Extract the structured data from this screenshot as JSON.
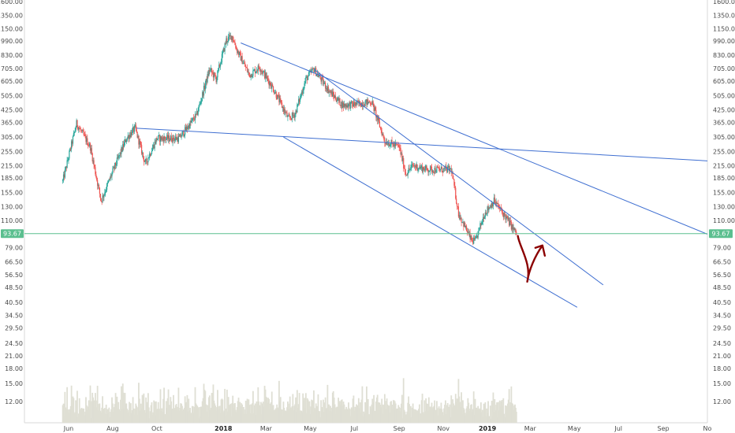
{
  "chart_data": {
    "type": "candlestick",
    "scale": "log",
    "ylim": [
      10.8,
      1600
    ],
    "y_ticks": [
      "1600.00",
      "1350.00",
      "1150.00",
      "990.00",
      "830.00",
      "705.00",
      "605.00",
      "505.00",
      "425.00",
      "365.00",
      "305.00",
      "255.00",
      "215.00",
      "185.00",
      "155.00",
      "130.00",
      "110.00",
      "79.00",
      "66.50",
      "56.50",
      "48.50",
      "40.50",
      "34.50",
      "29.50",
      "24.50",
      "21.00",
      "18.00",
      "15.00",
      "12.00"
    ],
    "x_ticks": [
      {
        "label": "Jun",
        "date": "2017-06-01"
      },
      {
        "label": "Aug",
        "date": "2017-08-01"
      },
      {
        "label": "Oct",
        "date": "2017-10-01"
      },
      {
        "label": "2018",
        "date": "2018-01-01",
        "bold": true
      },
      {
        "label": "Mar",
        "date": "2018-03-01"
      },
      {
        "label": "May",
        "date": "2018-05-01"
      },
      {
        "label": "Jul",
        "date": "2018-07-01"
      },
      {
        "label": "Sep",
        "date": "2018-09-01"
      },
      {
        "label": "Nov",
        "date": "2018-11-01"
      },
      {
        "label": "2019",
        "date": "2019-01-01",
        "bold": true
      },
      {
        "label": "Mar",
        "date": "2019-03-01"
      },
      {
        "label": "May",
        "date": "2019-05-01"
      },
      {
        "label": "Jul",
        "date": "2019-07-01"
      },
      {
        "label": "Sep",
        "date": "2019-09-01"
      },
      {
        "label": "No",
        "date": "2019-11-01"
      }
    ],
    "xlim": [
      "2017-04-01",
      "2019-11-01"
    ],
    "current_price": "93.67",
    "price_anchors": [
      {
        "date": "2017-05-24",
        "price": 178
      },
      {
        "date": "2017-06-12",
        "price": 360
      },
      {
        "date": "2017-07-01",
        "price": 270
      },
      {
        "date": "2017-07-16",
        "price": 140
      },
      {
        "date": "2017-08-01",
        "price": 200
      },
      {
        "date": "2017-08-20",
        "price": 300
      },
      {
        "date": "2017-09-01",
        "price": 340
      },
      {
        "date": "2017-09-15",
        "price": 220
      },
      {
        "date": "2017-10-01",
        "price": 300
      },
      {
        "date": "2017-11-01",
        "price": 300
      },
      {
        "date": "2017-11-25",
        "price": 400
      },
      {
        "date": "2017-12-13",
        "price": 700
      },
      {
        "date": "2017-12-22",
        "price": 620
      },
      {
        "date": "2018-01-05",
        "price": 1000
      },
      {
        "date": "2018-01-13",
        "price": 1050
      },
      {
        "date": "2018-01-20",
        "price": 880
      },
      {
        "date": "2018-02-06",
        "price": 650
      },
      {
        "date": "2018-02-20",
        "price": 720
      },
      {
        "date": "2018-03-10",
        "price": 560
      },
      {
        "date": "2018-04-01",
        "price": 380
      },
      {
        "date": "2018-04-10",
        "price": 405
      },
      {
        "date": "2018-04-25",
        "price": 620
      },
      {
        "date": "2018-05-06",
        "price": 700
      },
      {
        "date": "2018-05-28",
        "price": 530
      },
      {
        "date": "2018-06-15",
        "price": 450
      },
      {
        "date": "2018-07-01",
        "price": 455
      },
      {
        "date": "2018-07-25",
        "price": 470
      },
      {
        "date": "2018-08-12",
        "price": 290
      },
      {
        "date": "2018-09-01",
        "price": 270
      },
      {
        "date": "2018-09-10",
        "price": 195
      },
      {
        "date": "2018-09-20",
        "price": 215
      },
      {
        "date": "2018-10-10",
        "price": 205
      },
      {
        "date": "2018-11-12",
        "price": 205
      },
      {
        "date": "2018-11-22",
        "price": 120
      },
      {
        "date": "2018-12-10",
        "price": 86
      },
      {
        "date": "2018-12-15",
        "price": 85
      },
      {
        "date": "2018-12-28",
        "price": 120
      },
      {
        "date": "2019-01-10",
        "price": 140
      },
      {
        "date": "2019-01-28",
        "price": 112
      },
      {
        "date": "2019-02-05",
        "price": 100
      },
      {
        "date": "2019-02-10",
        "price": 93.67
      }
    ],
    "trend_lines": [
      {
        "from": [
          "2017-09-03",
          340
        ],
        "to": [
          "2019-11-01",
          228
        ]
      },
      {
        "from": [
          "2018-01-25",
          965
        ],
        "to": [
          "2019-11-01",
          93
        ]
      },
      {
        "from": [
          "2018-05-06",
          700
        ],
        "to": [
          "2019-06-10",
          50
        ]
      },
      {
        "from": [
          "2018-03-25",
          305
        ],
        "to": [
          "2019-05-05",
          38
        ]
      }
    ],
    "projection_arrow": {
      "start": [
        "2019-02-12",
        91
      ],
      "bottom": [
        "2019-02-25",
        52
      ],
      "tip": [
        "2019-03-18",
        81
      ]
    },
    "colors": {
      "up": "#26a69a",
      "down": "#ef5350",
      "trend_line": "#3f6fd1",
      "price_line": "#5bbf8f",
      "arrow": "#8b0000",
      "volume": "#dfdfd4",
      "axis_text": "#4a4a4a"
    }
  }
}
